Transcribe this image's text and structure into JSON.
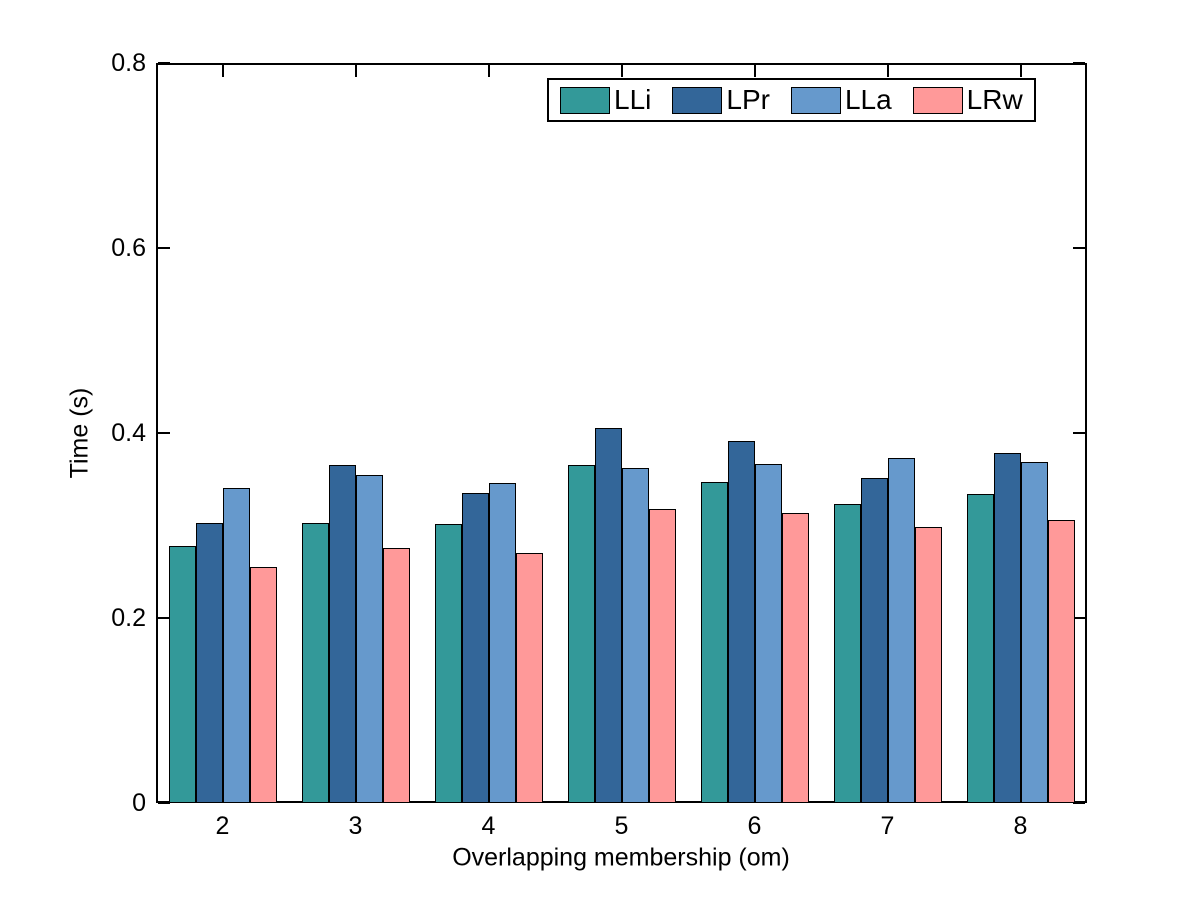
{
  "chart_data": {
    "type": "bar",
    "title": "",
    "xlabel": "Overlapping membership (om)",
    "ylabel": "Time (s)",
    "categories": [
      "2",
      "3",
      "4",
      "5",
      "6",
      "7",
      "8"
    ],
    "series": [
      {
        "name": "LLi",
        "color": "#339999",
        "values": [
          0.278,
          0.303,
          0.302,
          0.365,
          0.347,
          0.323,
          0.334
        ]
      },
      {
        "name": "LPr",
        "color": "#336699",
        "values": [
          0.303,
          0.365,
          0.335,
          0.405,
          0.391,
          0.351,
          0.378
        ]
      },
      {
        "name": "LLa",
        "color": "#6699cc",
        "values": [
          0.341,
          0.355,
          0.346,
          0.362,
          0.367,
          0.373,
          0.369
        ]
      },
      {
        "name": "LRw",
        "color": "#ff9999",
        "values": [
          0.255,
          0.276,
          0.27,
          0.318,
          0.314,
          0.298,
          0.306
        ]
      }
    ],
    "ylim": [
      0,
      0.8
    ],
    "yticks": [
      0,
      0.2,
      0.4,
      0.6,
      0.8
    ],
    "ytick_labels": [
      "0",
      "0.2",
      "0.4",
      "0.6",
      "0.8"
    ],
    "grid": false,
    "legend_position": "top-right-inside",
    "bar_border_color": "#000000",
    "axis_color": "#000000",
    "background_color": "#ffffff"
  }
}
